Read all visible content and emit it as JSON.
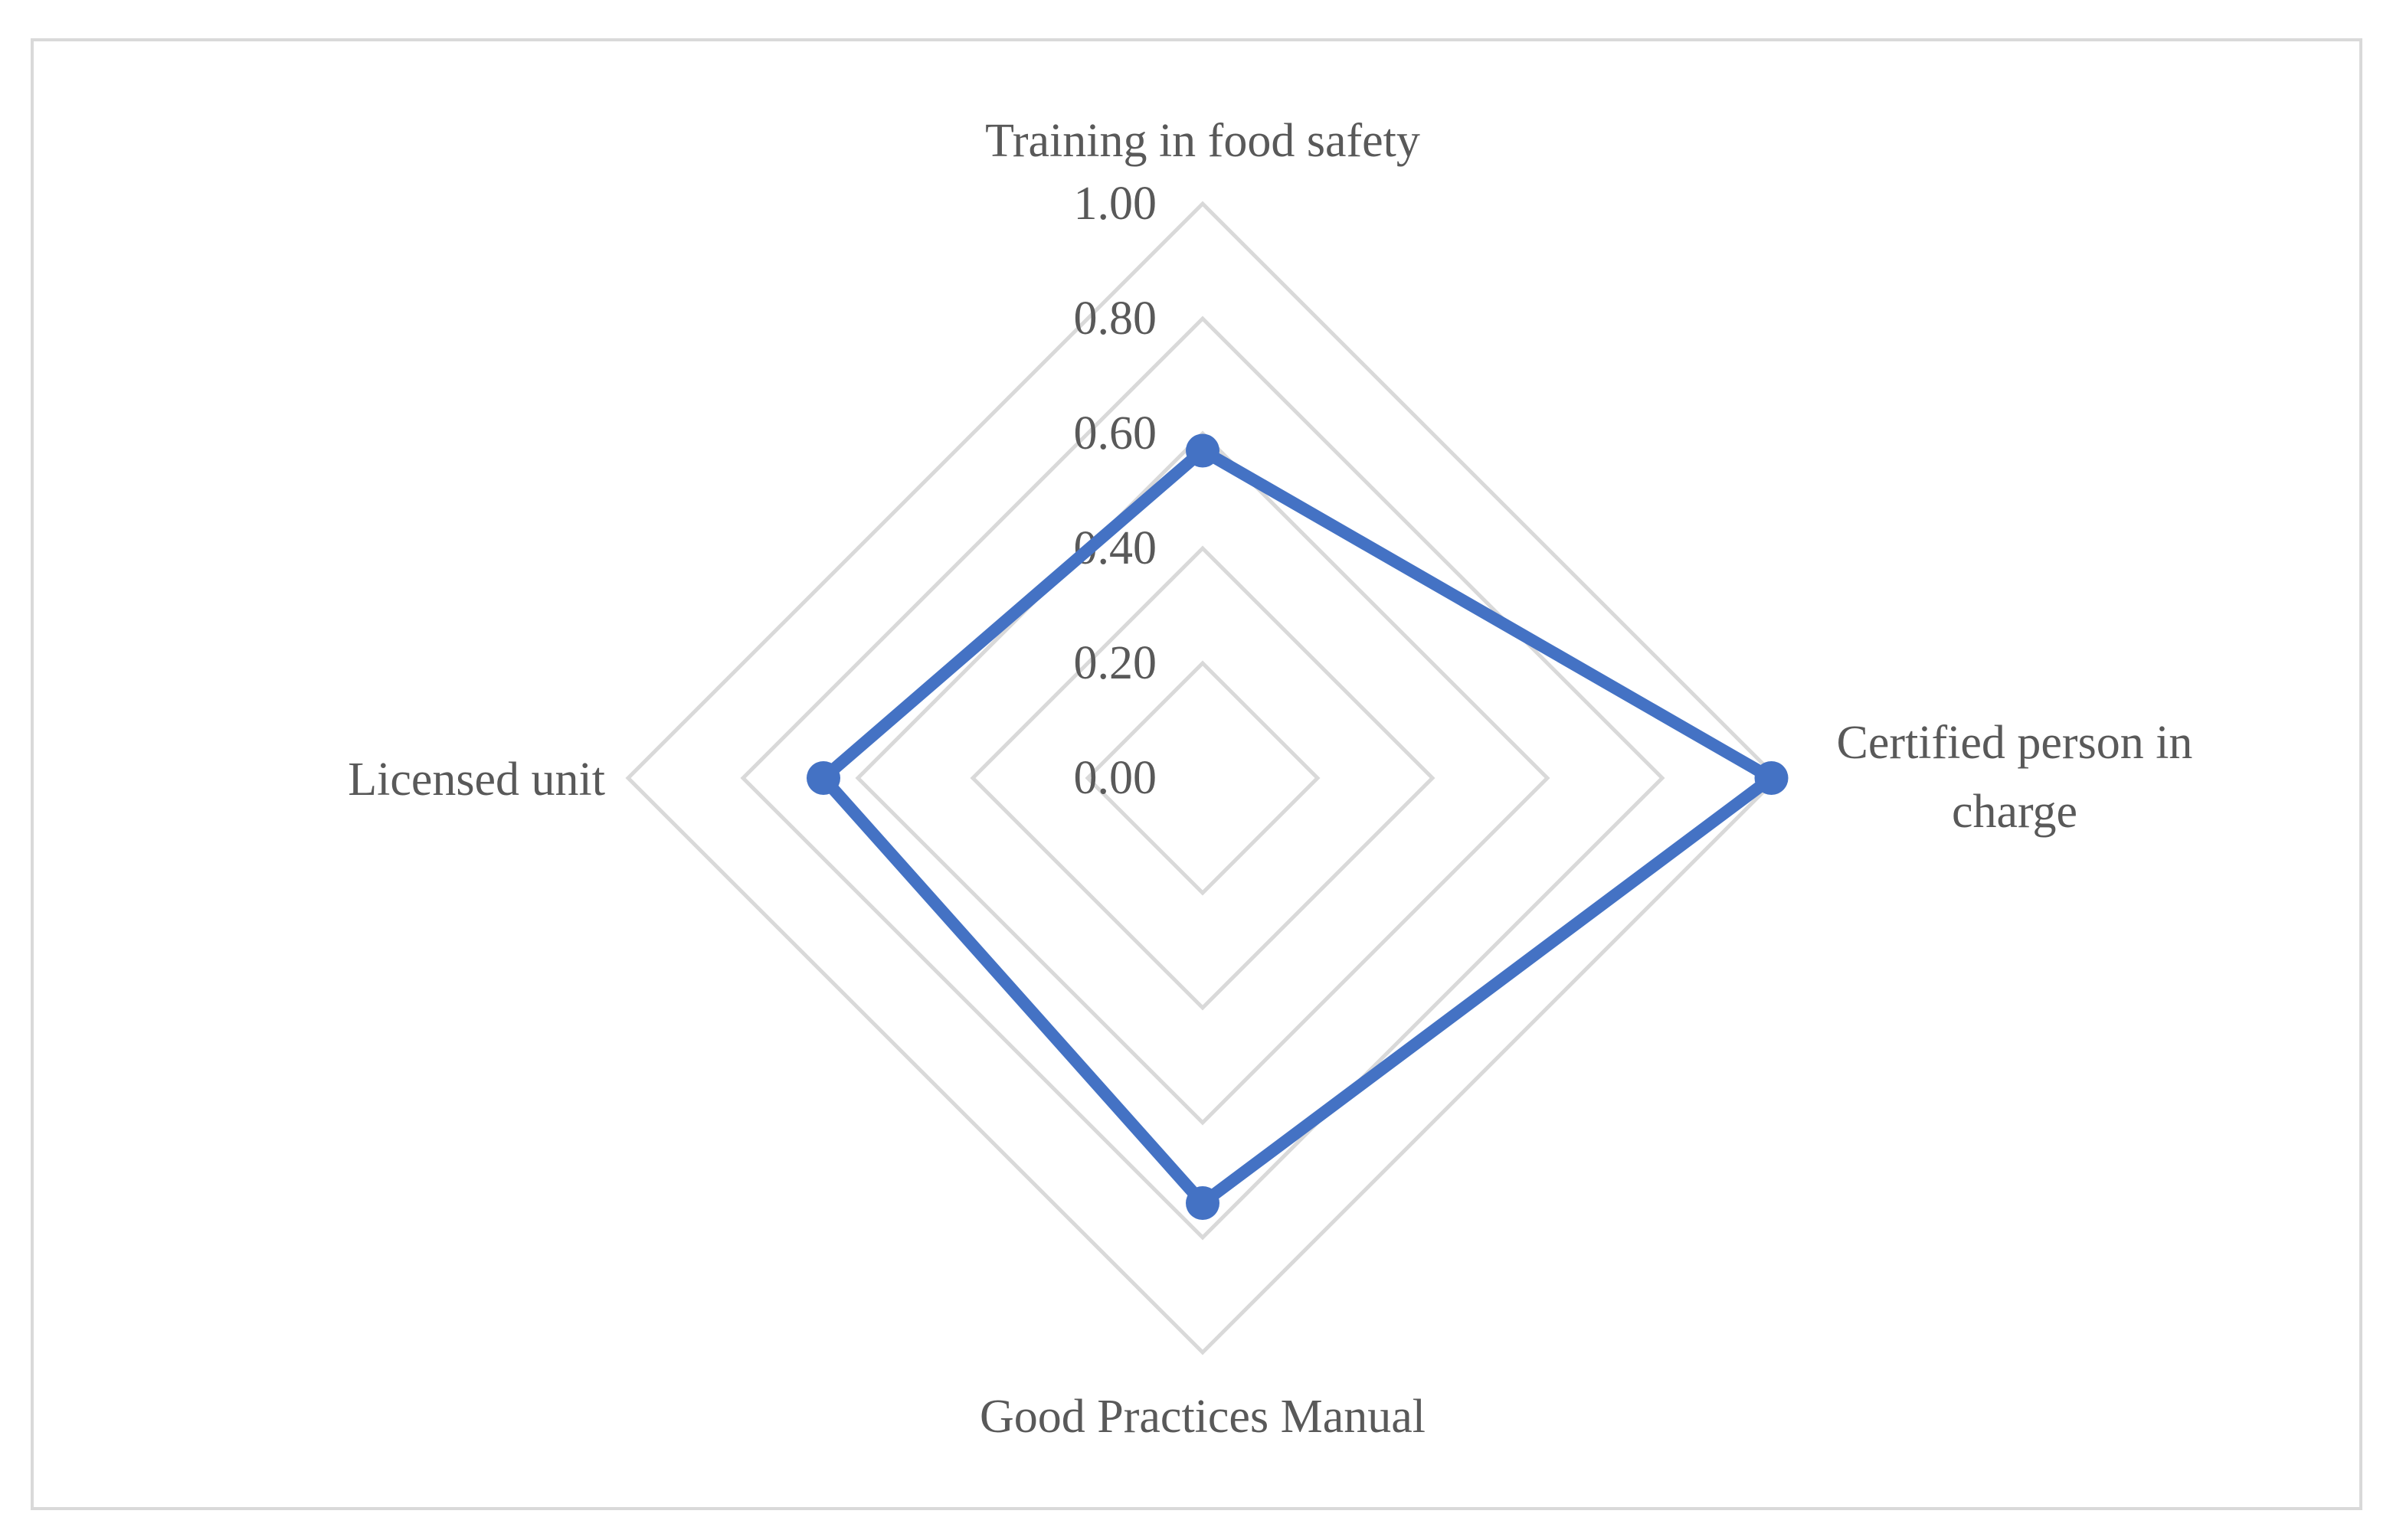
{
  "chart_data": {
    "type": "radar",
    "categories": [
      "Training in food safety",
      "Certified person in charge",
      "Good Practices Manual",
      "Licensed unit"
    ],
    "series": [
      {
        "values": [
          0.57,
          0.99,
          0.74,
          0.66
        ]
      }
    ],
    "ticks": [
      "0.00",
      "0.20",
      "0.40",
      "0.60",
      "0.80",
      "1.00"
    ],
    "range": [
      0,
      1
    ],
    "grid": true,
    "legend": "none",
    "colors": {
      "series": "#4472c4",
      "grid": "#d9d9d9",
      "text": "#595959",
      "border": "#d9d9d9"
    }
  }
}
